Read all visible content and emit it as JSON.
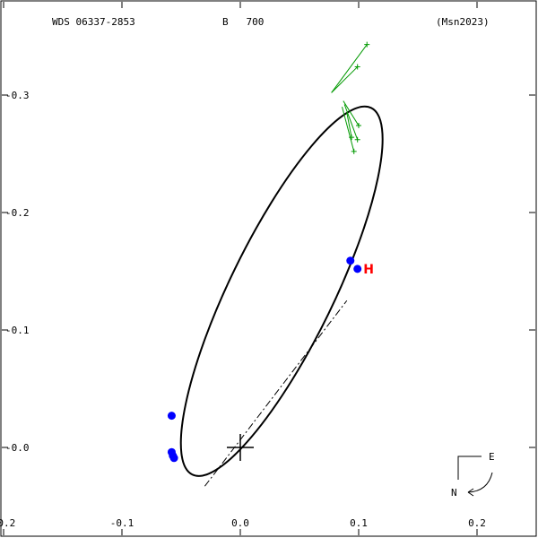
{
  "header": {
    "designation": "WDS 06337-2853",
    "component": "B   700",
    "reference": "(Msn2023)"
  },
  "chart_data": {
    "type": "scatter",
    "x_ticks": [
      -0.2,
      -0.1,
      0.0,
      0.1,
      0.2
    ],
    "x_tick_labels": [
      "-0.2",
      "-0.1",
      "0.0",
      "0.1",
      "0.2"
    ],
    "y_ticks": [
      0.3,
      0.2,
      0.1,
      0.0
    ],
    "y_tick_labels": [
      "-0.3",
      "-0.2",
      "-0.1",
      "-0.0"
    ],
    "xlim": [
      -0.2,
      0.25
    ],
    "ylim": [
      -0.035,
      0.375
    ],
    "orbit_ellipse": {
      "center": [
        0.035,
        0.133
      ],
      "semi_axes": [
        0.173,
        0.044
      ],
      "rotation_deg": 64
    },
    "node_line": [
      [
        -0.03,
        -0.033
      ],
      [
        0.09,
        0.125
      ]
    ],
    "observations": [
      [
        -0.058,
        0.027
      ],
      [
        -0.058,
        -0.004
      ],
      [
        -0.057,
        -0.007
      ],
      [
        -0.056,
        -0.009
      ],
      [
        0.093,
        0.159
      ],
      [
        0.099,
        0.152
      ]
    ],
    "hipparcos_point": {
      "x": 0.104,
      "y": 0.152,
      "label": "H"
    },
    "green_plus_points": [
      [
        0.107,
        0.343
      ],
      [
        0.099,
        0.324
      ],
      [
        0.1,
        0.274
      ],
      [
        0.099,
        0.262
      ],
      [
        0.096,
        0.252
      ],
      [
        0.094,
        0.264
      ]
    ],
    "green_line_segments": [
      [
        [
          0.077,
          0.302
        ],
        [
          0.107,
          0.343
        ]
      ],
      [
        [
          0.077,
          0.302
        ],
        [
          0.099,
          0.324
        ]
      ],
      [
        [
          0.087,
          0.295
        ],
        [
          0.1,
          0.274
        ]
      ],
      [
        [
          0.088,
          0.292
        ],
        [
          0.099,
          0.262
        ]
      ],
      [
        [
          0.086,
          0.29
        ],
        [
          0.096,
          0.252
        ]
      ],
      [
        [
          0.09,
          0.285
        ],
        [
          0.094,
          0.264
        ]
      ]
    ],
    "primary_marker": [
      0.0,
      0.0
    ],
    "compass": {
      "east": "E",
      "north": "N"
    },
    "colors": {
      "orbit": "#000000",
      "observation": "#0000ff",
      "hipparcos": "#ff0000",
      "residual": "#009900"
    }
  }
}
